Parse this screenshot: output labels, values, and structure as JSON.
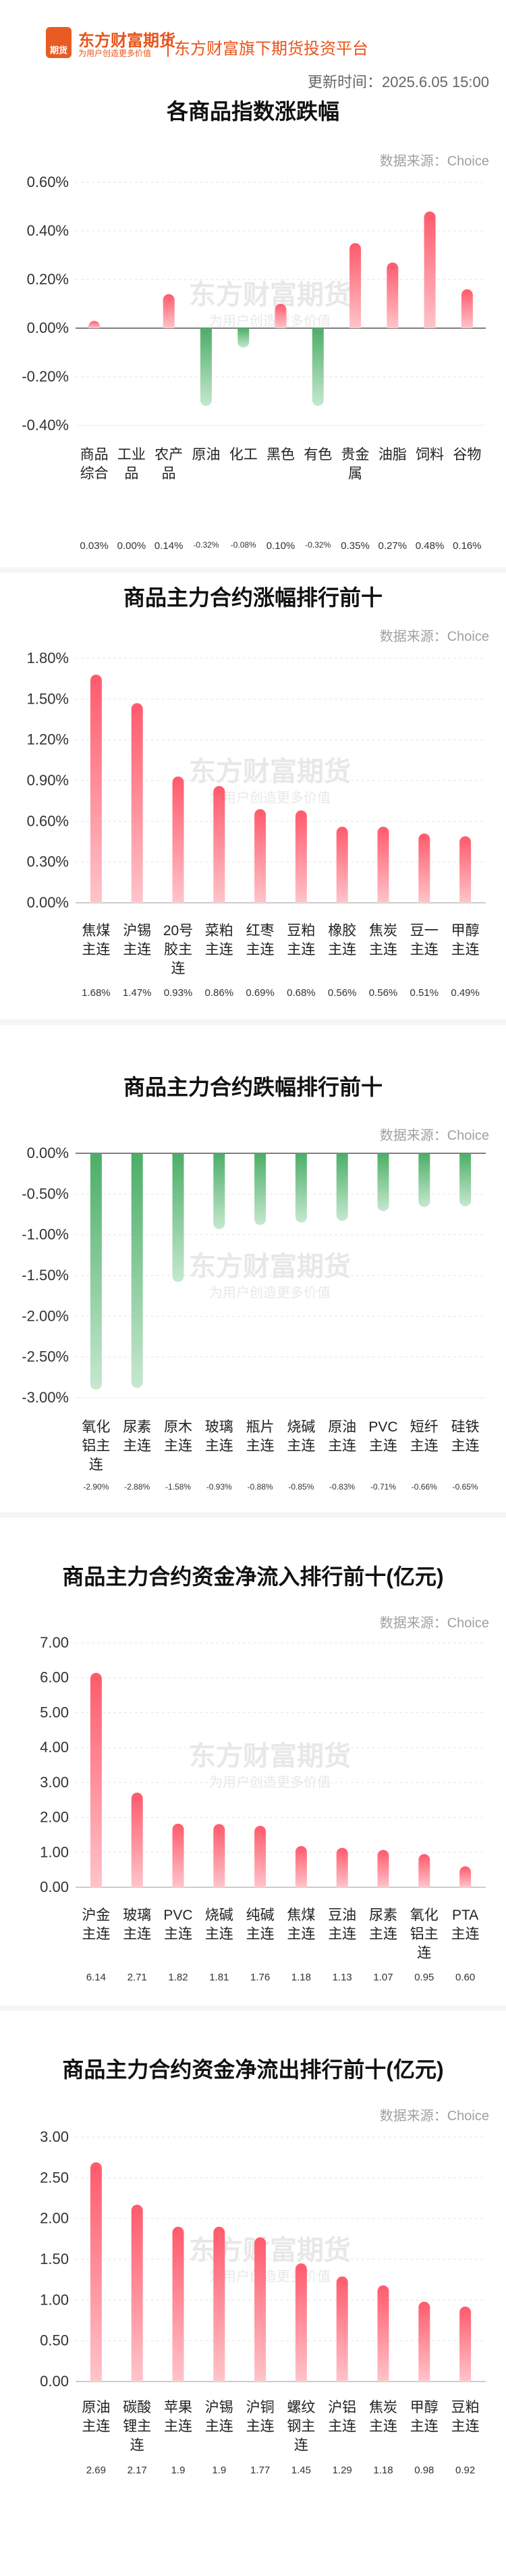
{
  "header": {
    "brand_name": "东方财富期货",
    "brand_slogan": "为用户创造更多价值",
    "brand_icon_text": "期货",
    "platform": "东方财富旗下期货投资平台",
    "update_time": "更新时间：2025.6.05 15:00"
  },
  "watermark": {
    "name": "东方财富期货",
    "slogan": "为用户创造更多价值"
  },
  "colors": {
    "up_top": "#ff5a6c",
    "up_bottom": "#ffc4ca",
    "down_top": "#4cae67",
    "down_bottom": "#c6e8cf",
    "brand": "#e8541a"
  },
  "chart_data": [
    {
      "type": "bar",
      "title": "各商品指数涨跌幅",
      "source": "数据来源：Choice",
      "categories": [
        "商品\n综合",
        "工业\n品",
        "农产\n品",
        "原油",
        "化工",
        "黑色",
        "有色",
        "贵金\n属",
        "油脂",
        "饲料",
        "谷物"
      ],
      "values": [
        0.03,
        0.0,
        0.14,
        -0.32,
        -0.08,
        0.1,
        -0.32,
        0.35,
        0.27,
        0.48,
        0.16
      ],
      "value_labels": [
        "0.03%",
        "0.00%",
        "0.14%",
        "-0.32%",
        "-0.08%",
        "0.10%",
        "-0.32%",
        "0.35%",
        "0.27%",
        "0.48%",
        "0.16%"
      ],
      "ylim": [
        -0.4,
        0.6
      ],
      "yticks": [
        0.6,
        0.4,
        0.2,
        0.0,
        -0.2,
        -0.4
      ],
      "ytick_labels": [
        "0.60%",
        "0.40%",
        "0.20%",
        "0.00%",
        "-0.20%",
        "-0.40%"
      ]
    },
    {
      "type": "bar",
      "title": "商品主力合约涨幅排行前十",
      "source": "数据来源：Choice",
      "categories": [
        "焦煤\n主连",
        "沪锡\n主连",
        "20号\n胶主\n连",
        "菜粕\n主连",
        "红枣\n主连",
        "豆粕\n主连",
        "橡胶\n主连",
        "焦炭\n主连",
        "豆一\n主连",
        "甲醇\n主连"
      ],
      "values": [
        1.68,
        1.47,
        0.93,
        0.86,
        0.69,
        0.68,
        0.56,
        0.56,
        0.51,
        0.49
      ],
      "value_labels": [
        "1.68%",
        "1.47%",
        "0.93%",
        "0.86%",
        "0.69%",
        "0.68%",
        "0.56%",
        "0.56%",
        "0.51%",
        "0.49%"
      ],
      "ylim": [
        0,
        1.8
      ],
      "yticks": [
        1.8,
        1.5,
        1.2,
        0.9,
        0.6,
        0.3,
        0.0
      ],
      "ytick_labels": [
        "1.80%",
        "1.50%",
        "1.20%",
        "0.90%",
        "0.60%",
        "0.30%",
        "0.00%"
      ]
    },
    {
      "type": "bar",
      "title": "商品主力合约跌幅排行前十",
      "source": "数据来源：Choice",
      "categories": [
        "氧化\n铝主\n连",
        "尿素\n主连",
        "原木\n主连",
        "玻璃\n主连",
        "瓶片\n主连",
        "烧碱\n主连",
        "原油\n主连",
        "PVC\n主连",
        "短纤\n主连",
        "硅铁\n主连"
      ],
      "values": [
        -2.9,
        -2.88,
        -1.58,
        -0.93,
        -0.88,
        -0.85,
        -0.83,
        -0.71,
        -0.66,
        -0.65
      ],
      "value_labels": [
        "-2.90%",
        "-2.88%",
        "-1.58%",
        "-0.93%",
        "-0.88%",
        "-0.85%",
        "-0.83%",
        "-0.71%",
        "-0.66%",
        "-0.65%"
      ],
      "ylim": [
        -3.0,
        0
      ],
      "yticks": [
        0.0,
        -0.5,
        -1.0,
        -1.5,
        -2.0,
        -2.5,
        -3.0
      ],
      "ytick_labels": [
        "0.00%",
        "-0.50%",
        "-1.00%",
        "-1.50%",
        "-2.00%",
        "-2.50%",
        "-3.00%"
      ]
    },
    {
      "type": "bar",
      "title": "商品主力合约资金净流入排行前十(亿元)",
      "source": "数据来源：Choice",
      "categories": [
        "沪金\n主连",
        "玻璃\n主连",
        "PVC\n主连",
        "烧碱\n主连",
        "纯碱\n主连",
        "焦煤\n主连",
        "豆油\n主连",
        "尿素\n主连",
        "氧化\n铝主\n连",
        "PTA\n主连"
      ],
      "values": [
        6.14,
        2.71,
        1.82,
        1.81,
        1.76,
        1.18,
        1.13,
        1.07,
        0.95,
        0.6
      ],
      "value_labels": [
        "6.14",
        "2.71",
        "1.82",
        "1.81",
        "1.76",
        "1.18",
        "1.13",
        "1.07",
        "0.95",
        "0.60"
      ],
      "ylim": [
        0,
        7.0
      ],
      "yticks": [
        7,
        6,
        5,
        4,
        3,
        2,
        1,
        0
      ],
      "ytick_labels": [
        "7.00",
        "6.00",
        "5.00",
        "4.00",
        "3.00",
        "2.00",
        "1.00",
        "0.00"
      ]
    },
    {
      "type": "bar",
      "title": "商品主力合约资金净流出排行前十(亿元)",
      "source": "数据来源：Choice",
      "categories": [
        "原油\n主连",
        "碳酸\n锂主\n连",
        "苹果\n主连",
        "沪锡\n主连",
        "沪铜\n主连",
        "螺纹\n钢主\n连",
        "沪铝\n主连",
        "焦炭\n主连",
        "甲醇\n主连",
        "豆粕\n主连"
      ],
      "values": [
        2.69,
        2.17,
        1.9,
        1.9,
        1.77,
        1.45,
        1.29,
        1.18,
        0.98,
        0.92
      ],
      "value_labels": [
        "2.69",
        "2.17",
        "1.9",
        "1.9",
        "1.77",
        "1.45",
        "1.29",
        "1.18",
        "0.98",
        "0.92"
      ],
      "ylim": [
        0,
        3.0
      ],
      "yticks": [
        3.0,
        2.5,
        2.0,
        1.5,
        1.0,
        0.5,
        0.0
      ],
      "ytick_labels": [
        "3.00",
        "2.50",
        "2.00",
        "1.50",
        "1.00",
        "0.50",
        "0.00"
      ]
    }
  ]
}
